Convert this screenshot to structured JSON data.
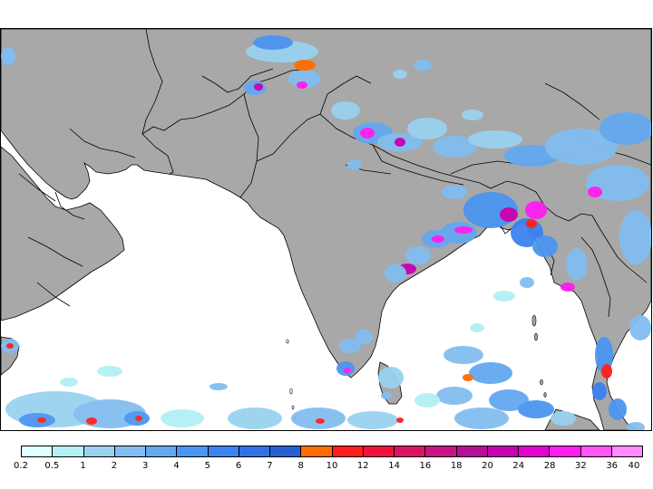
{
  "map": {
    "land_color": "#a8a8a8",
    "ocean_color": "#ffffff",
    "border_color": "#000000"
  },
  "legend": {
    "colors": [
      "#e0ffff",
      "#b4f0f4",
      "#9ad2f0",
      "#82bef0",
      "#64a8f0",
      "#4b96f0",
      "#3c82f0",
      "#3270e6",
      "#2860d2",
      "#ff6e00",
      "#ff1e1e",
      "#f0143c",
      "#dc1464",
      "#c81482",
      "#b40f96",
      "#c800b4",
      "#e600d2",
      "#ff1ef0",
      "#ff55f5",
      "#ff8cff"
    ],
    "labels": [
      "0.2",
      "0.5",
      "1",
      "2",
      "3",
      "4",
      "5",
      "6",
      "7",
      "8",
      "10",
      "12",
      "14",
      "16",
      "18",
      "20",
      "24",
      "28",
      "32",
      "36",
      "40"
    ]
  }
}
